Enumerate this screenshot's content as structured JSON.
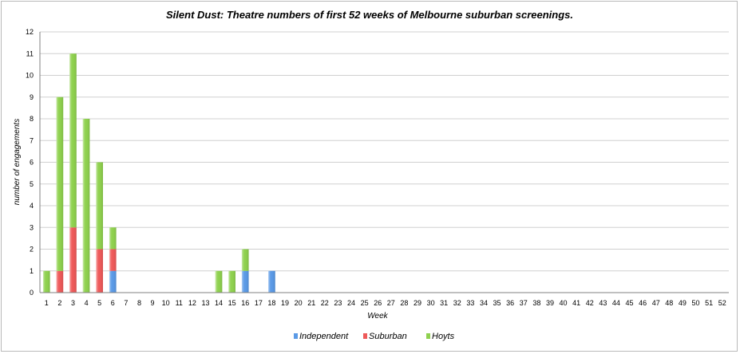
{
  "chart_data": {
    "type": "bar",
    "stacked": true,
    "title": "Silent Dust: Theatre numbers of first 52 weeks of Melbourne suburban screenings.",
    "xlabel": "Week",
    "ylabel": "number of engagements",
    "ylim": [
      0,
      12
    ],
    "yticks": [
      0,
      1,
      2,
      3,
      4,
      5,
      6,
      7,
      8,
      9,
      10,
      11,
      12
    ],
    "grid": true,
    "legend_position": "bottom",
    "categories": [
      "1",
      "2",
      "3",
      "4",
      "5",
      "6",
      "7",
      "8",
      "9",
      "10",
      "11",
      "12",
      "13",
      "14",
      "15",
      "16",
      "17",
      "18",
      "19",
      "20",
      "21",
      "22",
      "23",
      "24",
      "25",
      "26",
      "27",
      "28",
      "29",
      "30",
      "31",
      "32",
      "33",
      "34",
      "35",
      "36",
      "37",
      "38",
      "39",
      "40",
      "41",
      "42",
      "43",
      "44",
      "45",
      "46",
      "47",
      "48",
      "49",
      "50",
      "51",
      "52"
    ],
    "series": [
      {
        "name": "Independent",
        "color": "#5b9ae6",
        "values": [
          0,
          0,
          0,
          0,
          0,
          1,
          0,
          0,
          0,
          0,
          0,
          0,
          0,
          0,
          0,
          1,
          0,
          1,
          0,
          0,
          0,
          0,
          0,
          0,
          0,
          0,
          0,
          0,
          0,
          0,
          0,
          0,
          0,
          0,
          0,
          0,
          0,
          0,
          0,
          0,
          0,
          0,
          0,
          0,
          0,
          0,
          0,
          0,
          0,
          0,
          0,
          0
        ]
      },
      {
        "name": "Suburban",
        "color": "#ee5a5a",
        "values": [
          0,
          1,
          3,
          0,
          2,
          1,
          0,
          0,
          0,
          0,
          0,
          0,
          0,
          0,
          0,
          0,
          0,
          0,
          0,
          0,
          0,
          0,
          0,
          0,
          0,
          0,
          0,
          0,
          0,
          0,
          0,
          0,
          0,
          0,
          0,
          0,
          0,
          0,
          0,
          0,
          0,
          0,
          0,
          0,
          0,
          0,
          0,
          0,
          0,
          0,
          0,
          0
        ]
      },
      {
        "name": "Hoyts",
        "color": "#8fd14f",
        "values": [
          1,
          8,
          8,
          8,
          4,
          1,
          0,
          0,
          0,
          0,
          0,
          0,
          0,
          1,
          1,
          1,
          0,
          0,
          0,
          0,
          0,
          0,
          0,
          0,
          0,
          0,
          0,
          0,
          0,
          0,
          0,
          0,
          0,
          0,
          0,
          0,
          0,
          0,
          0,
          0,
          0,
          0,
          0,
          0,
          0,
          0,
          0,
          0,
          0,
          0,
          0,
          0
        ]
      }
    ]
  }
}
